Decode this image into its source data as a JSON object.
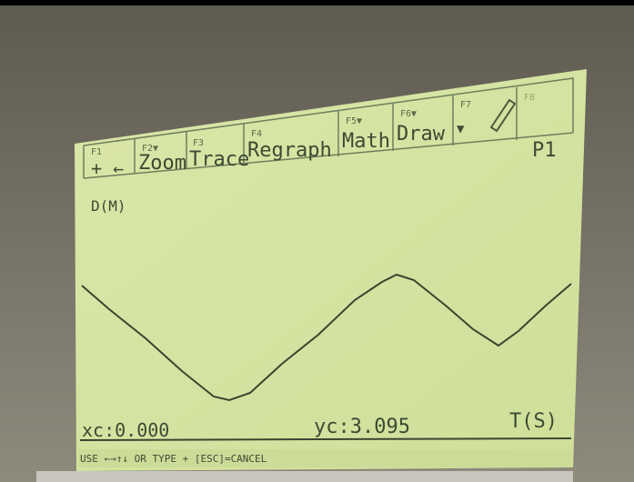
{
  "toolbar": [
    {
      "key": "F1"
    },
    {
      "key": "F2▼",
      "label": "Zoom"
    },
    {
      "key": "F3",
      "label": "Trace"
    },
    {
      "key": "F4",
      "label": "Regraph"
    },
    {
      "key": "F5▼",
      "label": "Math"
    },
    {
      "key": "F6▼",
      "label": "Draw"
    },
    {
      "key": "F7",
      "label": "▼"
    },
    {
      "key": "F8"
    }
  ],
  "mode": "P1",
  "graph": {
    "y_label": "D(M)",
    "x_label": "T(S)",
    "xc": "xc:0.000",
    "yc": "yc:3.095"
  },
  "status": "USE ←→↑↓ OR TYPE + [ESC]=CANCEL"
}
